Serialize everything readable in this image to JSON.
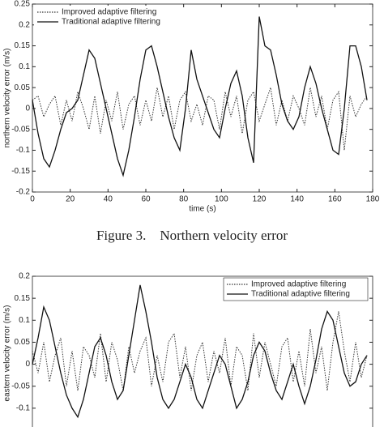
{
  "chart_data": [
    {
      "type": "line",
      "xlabel": "time (s)",
      "ylabel": "northern velocity error (m/s)",
      "caption": "Figure 3.    Northern velocity error",
      "x": [
        0,
        3,
        6,
        9,
        12,
        15,
        18,
        21,
        24,
        27,
        30,
        33,
        36,
        39,
        42,
        45,
        48,
        51,
        54,
        57,
        60,
        63,
        66,
        69,
        72,
        75,
        78,
        81,
        84,
        87,
        90,
        93,
        96,
        99,
        102,
        105,
        108,
        111,
        114,
        117,
        120,
        123,
        126,
        129,
        132,
        135,
        138,
        141,
        144,
        147,
        150,
        153,
        156,
        159,
        162,
        165,
        168,
        171,
        174,
        177
      ],
      "series": [
        {
          "name": "Improved adaptive filtering",
          "color": "#333333",
          "linestyle": "dotted",
          "values": [
            0.02,
            0.03,
            -0.02,
            0.01,
            0.03,
            -0.04,
            0.02,
            -0.03,
            0.04,
            0.0,
            -0.05,
            0.03,
            -0.06,
            0.02,
            -0.03,
            0.04,
            -0.05,
            0.01,
            0.03,
            -0.04,
            0.02,
            -0.03,
            0.05,
            -0.02,
            0.03,
            -0.05,
            0.02,
            0.04,
            -0.03,
            0.01,
            -0.04,
            0.03,
            0.02,
            -0.05,
            0.04,
            -0.02,
            0.03,
            -0.06,
            0.02,
            0.04,
            -0.03,
            0.01,
            0.05,
            -0.04,
            0.02,
            -0.03,
            0.03,
            0.0,
            -0.04,
            0.05,
            -0.02,
            0.03,
            -0.05,
            0.02,
            0.04,
            -0.1,
            0.03,
            -0.02,
            0.01,
            0.03
          ]
        },
        {
          "name": "Traditional adaptive filtering",
          "color": "#111111",
          "linestyle": "solid",
          "values": [
            0.02,
            -0.06,
            -0.12,
            -0.14,
            -0.1,
            -0.05,
            -0.01,
            0.0,
            0.02,
            0.08,
            0.14,
            0.12,
            0.06,
            0.0,
            -0.06,
            -0.12,
            -0.16,
            -0.1,
            -0.02,
            0.07,
            0.14,
            0.15,
            0.1,
            0.04,
            -0.02,
            -0.07,
            -0.1,
            0.0,
            0.14,
            0.07,
            0.03,
            -0.01,
            -0.05,
            -0.07,
            0.0,
            0.06,
            0.09,
            0.03,
            -0.07,
            -0.13,
            0.22,
            0.15,
            0.14,
            0.08,
            0.01,
            -0.03,
            -0.05,
            -0.02,
            0.05,
            0.1,
            0.06,
            0.0,
            -0.05,
            -0.1,
            -0.11,
            0.0,
            0.15,
            0.15,
            0.1,
            0.02
          ]
        }
      ],
      "xlim": [
        0,
        180
      ],
      "xticks": [
        0,
        20,
        40,
        60,
        80,
        100,
        120,
        140,
        160,
        180
      ],
      "ylim": [
        -0.2,
        0.25
      ],
      "yticks": [
        -0.2,
        -0.15,
        -0.1,
        -0.05,
        0,
        0.05,
        0.1,
        0.15,
        0.2,
        0.25
      ],
      "legend": "upper left"
    },
    {
      "type": "line",
      "ylabel": "eastern velocity error (m/s)",
      "x": [
        0,
        3,
        6,
        9,
        12,
        15,
        18,
        21,
        24,
        27,
        30,
        33,
        36,
        39,
        42,
        45,
        48,
        51,
        54,
        57,
        60,
        63,
        66,
        69,
        72,
        75,
        78,
        81,
        84,
        87,
        90,
        93,
        96,
        99,
        102,
        105,
        108,
        111,
        114,
        117,
        120,
        123,
        126,
        129,
        132,
        135,
        138,
        141,
        144,
        147,
        150,
        153,
        156,
        159,
        162,
        165,
        168,
        171,
        174,
        177
      ],
      "series": [
        {
          "name": "Improved adaptive filtering",
          "color": "#333333",
          "linestyle": "dotted",
          "values": [
            0.03,
            -0.02,
            0.05,
            -0.04,
            0.02,
            0.06,
            -0.05,
            0.03,
            -0.06,
            0.04,
            0.02,
            -0.03,
            0.07,
            -0.04,
            0.05,
            0.01,
            -0.06,
            0.04,
            -0.02,
            0.03,
            0.06,
            -0.05,
            0.02,
            -0.04,
            0.05,
            0.07,
            -0.03,
            0.04,
            -0.06,
            0.02,
            0.05,
            -0.04,
            0.03,
            -0.02,
            0.06,
            -0.05,
            0.04,
            0.02,
            -0.06,
            0.07,
            -0.03,
            0.05,
            0.0,
            -0.05,
            0.04,
            0.06,
            -0.04,
            0.03,
            -0.05,
            0.08,
            -0.02,
            0.04,
            -0.06,
            0.05,
            0.12,
            0.03,
            -0.04,
            0.05,
            -0.03,
            0.02
          ]
        },
        {
          "name": "Traditional adaptive filtering",
          "color": "#111111",
          "linestyle": "solid",
          "values": [
            0.0,
            0.06,
            0.13,
            0.1,
            0.04,
            -0.02,
            -0.07,
            -0.1,
            -0.12,
            -0.08,
            -0.02,
            0.04,
            0.06,
            0.02,
            -0.04,
            -0.08,
            -0.06,
            0.02,
            0.1,
            0.18,
            0.12,
            0.05,
            -0.03,
            -0.08,
            -0.1,
            -0.08,
            -0.04,
            0.0,
            -0.03,
            -0.08,
            -0.1,
            -0.06,
            -0.02,
            0.02,
            0.0,
            -0.05,
            -0.1,
            -0.08,
            -0.04,
            0.02,
            0.05,
            0.03,
            -0.02,
            -0.06,
            -0.08,
            -0.04,
            0.0,
            -0.05,
            -0.09,
            -0.05,
            0.01,
            0.08,
            0.12,
            0.1,
            0.04,
            -0.02,
            -0.05,
            -0.04,
            0.0,
            0.02
          ]
        }
      ],
      "xlim": [
        0,
        180
      ],
      "ylim": [
        -0.15,
        0.2
      ],
      "yticks": [
        -0.1,
        -0.05,
        0,
        0.05,
        0.1,
        0.15,
        0.2
      ],
      "legend": "upper right"
    }
  ]
}
